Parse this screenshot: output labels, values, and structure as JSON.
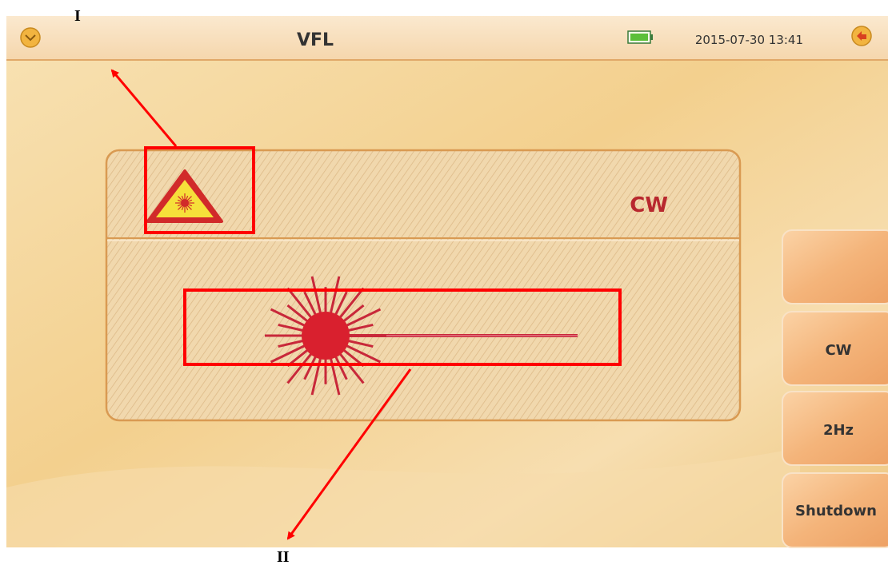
{
  "annotations": {
    "label_1": "I",
    "label_2": "II"
  },
  "header": {
    "title": "VFL",
    "datetime": "2015-07-30 13:41"
  },
  "panel": {
    "mode": "CW"
  },
  "side_buttons": [
    "CW",
    "2Hz",
    "Shutdown"
  ]
}
